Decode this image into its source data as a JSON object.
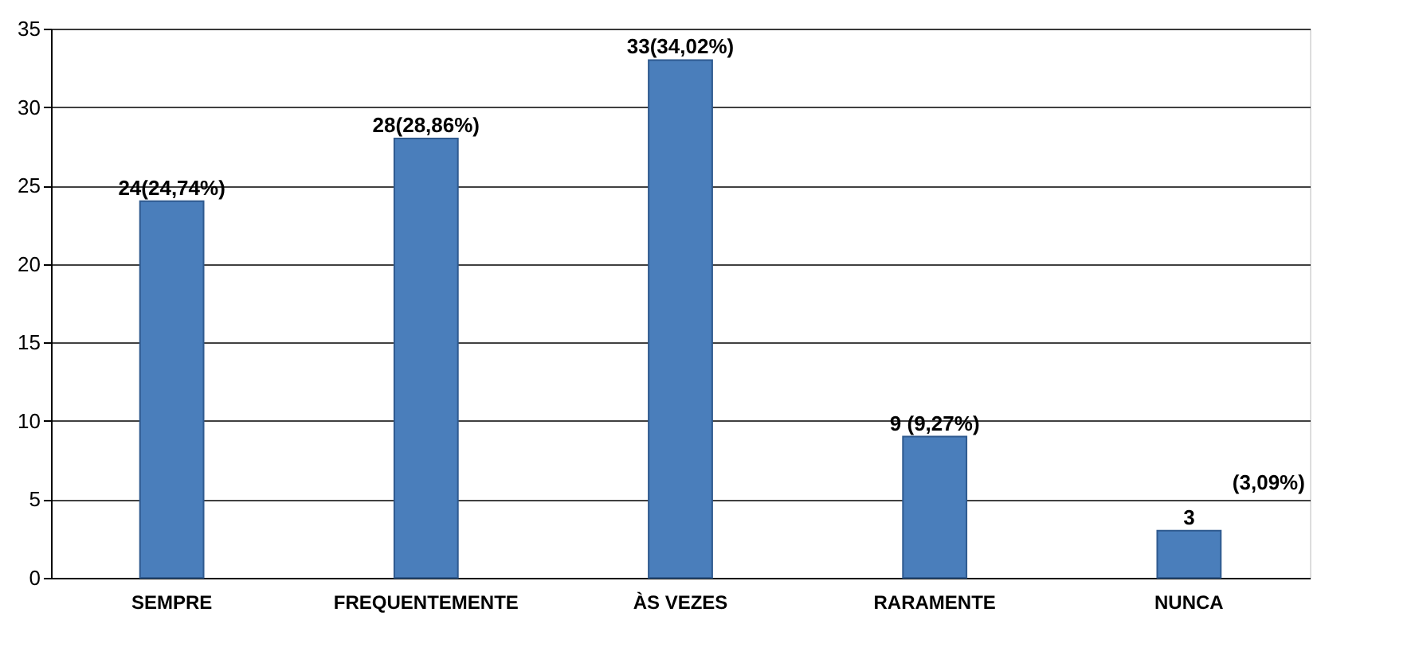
{
  "chart_data": {
    "type": "bar",
    "categories": [
      "SEMPRE",
      "FREQUENTEMENTE",
      "ÀS VEZES",
      "RARAMENTE",
      "NUNCA"
    ],
    "values": [
      24,
      28,
      33,
      9,
      3
    ],
    "value_labels": [
      "24(24,74%)",
      "28(28,86%)",
      "33(34,02%)",
      "9  (9,27%)",
      "3"
    ],
    "annotations": [
      "(3,09%)"
    ],
    "color": "#4a7ebb",
    "ylim": [
      0,
      35
    ],
    "yticks": [
      0,
      5,
      10,
      15,
      20,
      25,
      30,
      35
    ],
    "grid": "y"
  }
}
